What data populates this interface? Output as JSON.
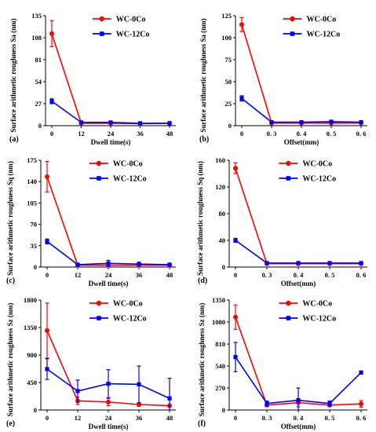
{
  "colors": {
    "wc0co": "#ff0000",
    "wc12co": "#0000ff",
    "axis": "#000000"
  },
  "chart_data": [
    {
      "type": "line",
      "panel_label": "(a)",
      "xlabel": "Dwell time(s)",
      "ylabel": "Surface arithmetic roughness Sa (nm)",
      "x": [
        0,
        12,
        24,
        36,
        48
      ],
      "xticks": [
        "0",
        "12",
        "24",
        "36",
        "48"
      ],
      "ylim": [
        0,
        135
      ],
      "yticks": [
        0,
        27,
        54,
        81,
        108,
        135
      ],
      "legend": "top-right",
      "series": [
        {
          "name": "WC-0Co",
          "values": [
            113,
            3,
            3,
            2.5,
            3
          ],
          "errors": [
            16,
            0,
            0,
            0,
            0
          ]
        },
        {
          "name": "WC-12Co",
          "values": [
            30,
            4,
            4,
            3,
            3
          ],
          "errors": [
            3,
            1,
            1,
            1,
            1
          ]
        }
      ]
    },
    {
      "type": "line",
      "panel_label": "(b)",
      "xlabel": "Offset(mm)",
      "ylabel": "Surface arithmetic roughness Sa (nm)",
      "x": [
        0,
        0.3,
        0.4,
        0.5,
        0.6
      ],
      "xticks": [
        "0",
        "0. 3",
        "0. 4",
        "0. 5",
        "0. 6"
      ],
      "ylim": [
        0,
        125
      ],
      "yticks": [
        0,
        25,
        50,
        75,
        100,
        125
      ],
      "legend": "top-right",
      "series": [
        {
          "name": "WC-0Co",
          "values": [
            115,
            3,
            3,
            3,
            3
          ],
          "errors": [
            8,
            0,
            0,
            0,
            0
          ]
        },
        {
          "name": "WC-12Co",
          "values": [
            31,
            4,
            4,
            4.5,
            4
          ],
          "errors": [
            3,
            1,
            1,
            1,
            1
          ]
        }
      ]
    },
    {
      "type": "line",
      "panel_label": "(c)",
      "xlabel": "Dwell time(s)",
      "ylabel": "Surface arithmetic roughness Sq (nm)",
      "x": [
        0,
        12,
        24,
        36,
        48
      ],
      "xticks": [
        "0",
        "12",
        "24",
        "36",
        "48"
      ],
      "ylim": [
        0,
        175
      ],
      "yticks": [
        0,
        35,
        70,
        105,
        140,
        175
      ],
      "legend": "top-right",
      "series": [
        {
          "name": "WC-0Co",
          "values": [
            148,
            3,
            3,
            3,
            3
          ],
          "errors": [
            25,
            0,
            0,
            0,
            0
          ]
        },
        {
          "name": "WC-12Co",
          "values": [
            42,
            4,
            6,
            5,
            4
          ],
          "errors": [
            4,
            1,
            5,
            3,
            2
          ]
        }
      ]
    },
    {
      "type": "line",
      "panel_label": "(d)",
      "xlabel": "Offset(mm)",
      "ylabel": "Surface arithmetic roughness Sq (nm)",
      "x": [
        0,
        0.3,
        0.4,
        0.5,
        0.6
      ],
      "xticks": [
        "0",
        "0. 3",
        "0. 4",
        "0. 5",
        "0. 6"
      ],
      "ylim": [
        0,
        160
      ],
      "yticks": [
        0,
        40,
        80,
        120,
        160
      ],
      "legend": "top-right",
      "series": [
        {
          "name": "WC-0Co",
          "values": [
            148,
            5,
            5,
            5,
            5
          ],
          "errors": [
            8,
            0,
            0,
            0,
            0
          ]
        },
        {
          "name": "WC-12Co",
          "values": [
            40,
            6,
            6,
            6,
            6
          ],
          "errors": [
            3,
            1,
            1,
            1,
            1
          ]
        }
      ]
    },
    {
      "type": "line",
      "panel_label": "(e)",
      "xlabel": "Dwell time(s)",
      "ylabel": "Surface arithmetic roughness Sz (nm)",
      "x": [
        0,
        12,
        24,
        36,
        48
      ],
      "xticks": [
        "0",
        "12",
        "24",
        "36",
        "48"
      ],
      "ylim": [
        0,
        1800
      ],
      "yticks": [
        0,
        450,
        900,
        1350,
        1800
      ],
      "legend": "top-right",
      "series": [
        {
          "name": "WC-0Co",
          "values": [
            1300,
            150,
            130,
            90,
            70
          ],
          "errors": [
            450,
            60,
            60,
            30,
            20
          ]
        },
        {
          "name": "WC-12Co",
          "values": [
            670,
            310,
            430,
            420,
            190
          ],
          "errors": [
            170,
            180,
            230,
            300,
            330
          ]
        }
      ]
    },
    {
      "type": "line",
      "panel_label": "(f)",
      "xlabel": "Offset(mm)",
      "ylabel": "Surface arithmetic roughness  Sz (nm)",
      "x": [
        0,
        0.3,
        0.4,
        0.5,
        0.6
      ],
      "xticks": [
        "0",
        "0. 3",
        "0. 4",
        "0. 5",
        "0. 6"
      ],
      "ylim": [
        0,
        1350
      ],
      "yticks": [
        0,
        270,
        540,
        810,
        1080,
        1350
      ],
      "legend": "top-right",
      "series": [
        {
          "name": "WC-0Co",
          "values": [
            1140,
            60,
            90,
            60,
            75
          ],
          "errors": [
            150,
            20,
            50,
            20,
            40
          ]
        },
        {
          "name": "WC-12Co",
          "values": [
            650,
            80,
            120,
            80,
            460
          ],
          "errors": [
            180,
            30,
            150,
            30,
            20
          ]
        }
      ]
    }
  ]
}
